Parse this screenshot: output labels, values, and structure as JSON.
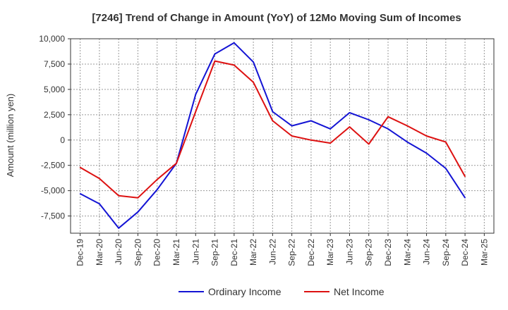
{
  "chart_data": {
    "type": "line",
    "title": "[7246]  Trend of Change in Amount (YoY) of 12Mo Moving Sum of Incomes",
    "xlabel": "",
    "ylabel": "Amount (million yen)",
    "ylim": [
      -9200,
      10000
    ],
    "yticks": [
      10000,
      7500,
      5000,
      2500,
      0,
      -2500,
      -5000,
      -7500
    ],
    "ytick_labels": [
      "10,000",
      "7,500",
      "5,000",
      "2,500",
      "0",
      "-2,500",
      "-5,000",
      "-7,500"
    ],
    "grid": true,
    "legend_position": "bottom-center",
    "categories": [
      "Dec-19",
      "Mar-20",
      "Jun-20",
      "Sep-20",
      "Dec-20",
      "Mar-21",
      "Jun-21",
      "Sep-21",
      "Dec-21",
      "Mar-22",
      "Jun-22",
      "Sep-22",
      "Dec-22",
      "Mar-23",
      "Jun-23",
      "Sep-23",
      "Dec-23",
      "Mar-24",
      "Jun-24",
      "Sep-24",
      "Dec-24",
      "Mar-25"
    ],
    "series": [
      {
        "name": "Ordinary Income",
        "color": "#1414d4",
        "values": [
          -5300,
          -6300,
          -8700,
          -7100,
          -4900,
          -2300,
          4500,
          8500,
          9600,
          7700,
          2800,
          1400,
          1900,
          1100,
          2700,
          2000,
          1100,
          -200,
          -1300,
          -2800,
          -5700,
          null
        ]
      },
      {
        "name": "Net Income",
        "color": "#dd1111",
        "values": [
          -2700,
          -3800,
          -5500,
          -5700,
          -3900,
          -2300,
          2800,
          7800,
          7400,
          5700,
          1900,
          400,
          0,
          -300,
          1300,
          -400,
          2300,
          1400,
          400,
          -200,
          -3600,
          null
        ]
      }
    ]
  }
}
